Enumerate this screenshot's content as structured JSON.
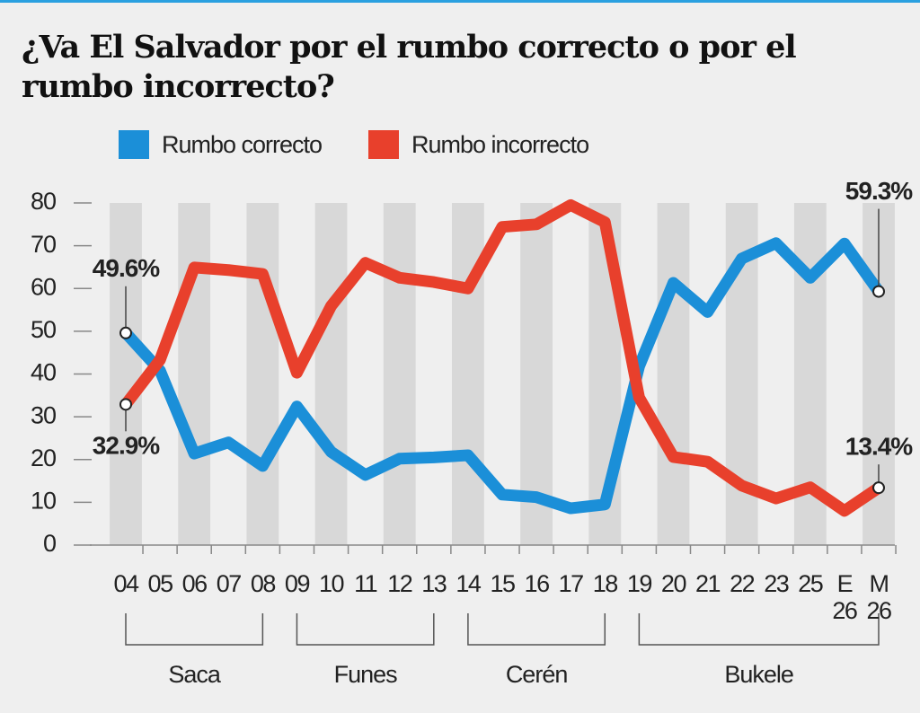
{
  "chart_data": {
    "type": "line",
    "title": "¿Va El Salvador por el rumbo correcto o por el rumbo incorrecto?",
    "categories": [
      "04",
      "05",
      "06",
      "07",
      "08",
      "09",
      "10",
      "11",
      "12",
      "13",
      "14",
      "15",
      "16",
      "17",
      "18",
      "19",
      "20",
      "21",
      "22",
      "23",
      "25",
      "E\n26",
      "M\n26"
    ],
    "series": [
      {
        "name": "Rumbo correcto",
        "color": "#1b8fd8",
        "values": [
          49.6,
          40.8,
          21.4,
          24,
          18.5,
          32.4,
          21.8,
          16.4,
          20.2,
          20.5,
          21,
          11.8,
          11.2,
          8.6,
          9.5,
          41.8,
          61.3,
          54.5,
          67,
          70.6,
          62.5,
          70.5,
          59.3
        ],
        "value_labels": [
          "49.6%",
          null,
          null,
          null,
          null,
          null,
          null,
          null,
          null,
          null,
          null,
          null,
          null,
          null,
          null,
          null,
          null,
          null,
          null,
          null,
          null,
          null,
          "59.3%"
        ]
      },
      {
        "name": "Rumbo incorrecto",
        "color": "#e8402c",
        "values": [
          32.9,
          43.3,
          64.9,
          64.3,
          63.4,
          40.3,
          55.9,
          66,
          62.5,
          61.5,
          60,
          74.4,
          75,
          79.5,
          75.5,
          34.5,
          20.6,
          19.5,
          13.9,
          10.9,
          13.5,
          8,
          13.4
        ],
        "value_labels": [
          "32.9%",
          null,
          null,
          null,
          null,
          null,
          null,
          null,
          null,
          null,
          null,
          null,
          null,
          null,
          null,
          null,
          null,
          null,
          null,
          null,
          null,
          null,
          "13.4%"
        ]
      }
    ],
    "groups": [
      "Saca",
      "Funes",
      "Cerén",
      "Bukele"
    ],
    "ylim": [
      0,
      80
    ],
    "yticks": [
      0,
      10,
      20,
      30,
      40,
      50,
      60,
      70,
      80
    ]
  }
}
